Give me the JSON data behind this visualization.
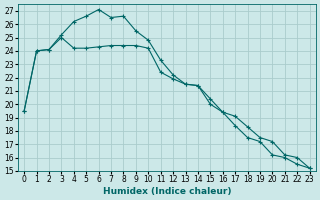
{
  "xlabel": "Humidex (Indice chaleur)",
  "bg_color": "#cce8e8",
  "grid_color": "#aacccc",
  "line_color": "#006666",
  "xlim": [
    -0.5,
    23.5
  ],
  "ylim": [
    15,
    27.5
  ],
  "yticks": [
    15,
    16,
    17,
    18,
    19,
    20,
    21,
    22,
    23,
    24,
    25,
    26,
    27
  ],
  "xticks": [
    0,
    1,
    2,
    3,
    4,
    5,
    6,
    7,
    8,
    9,
    10,
    11,
    12,
    13,
    14,
    15,
    16,
    17,
    18,
    19,
    20,
    21,
    22,
    23
  ],
  "line1_x": [
    0,
    1,
    2,
    3,
    4,
    5,
    6,
    7,
    8,
    9,
    10,
    11,
    12,
    13,
    14,
    15,
    16,
    17,
    18,
    19,
    20,
    21,
    22,
    23
  ],
  "line1_y": [
    19.5,
    24.0,
    24.1,
    25.2,
    26.2,
    26.6,
    27.1,
    26.5,
    26.6,
    25.5,
    24.8,
    23.3,
    22.2,
    21.5,
    21.4,
    20.0,
    19.4,
    18.4,
    17.5,
    17.2,
    16.2,
    16.0,
    15.5,
    15.2
  ],
  "line2_x": [
    0,
    1,
    2,
    3,
    4,
    5,
    6,
    7,
    8,
    9,
    10,
    11,
    12,
    13,
    14,
    15,
    16,
    17,
    18,
    19,
    20,
    21,
    22,
    23
  ],
  "line2_y": [
    19.5,
    24.0,
    24.1,
    25.0,
    24.2,
    24.2,
    24.3,
    24.4,
    24.4,
    24.4,
    24.2,
    22.4,
    21.9,
    21.5,
    21.4,
    20.4,
    19.4,
    19.1,
    18.3,
    17.5,
    17.2,
    16.2,
    16.0,
    15.2
  ],
  "tick_fontsize": 5.5,
  "xlabel_fontsize": 6.5
}
